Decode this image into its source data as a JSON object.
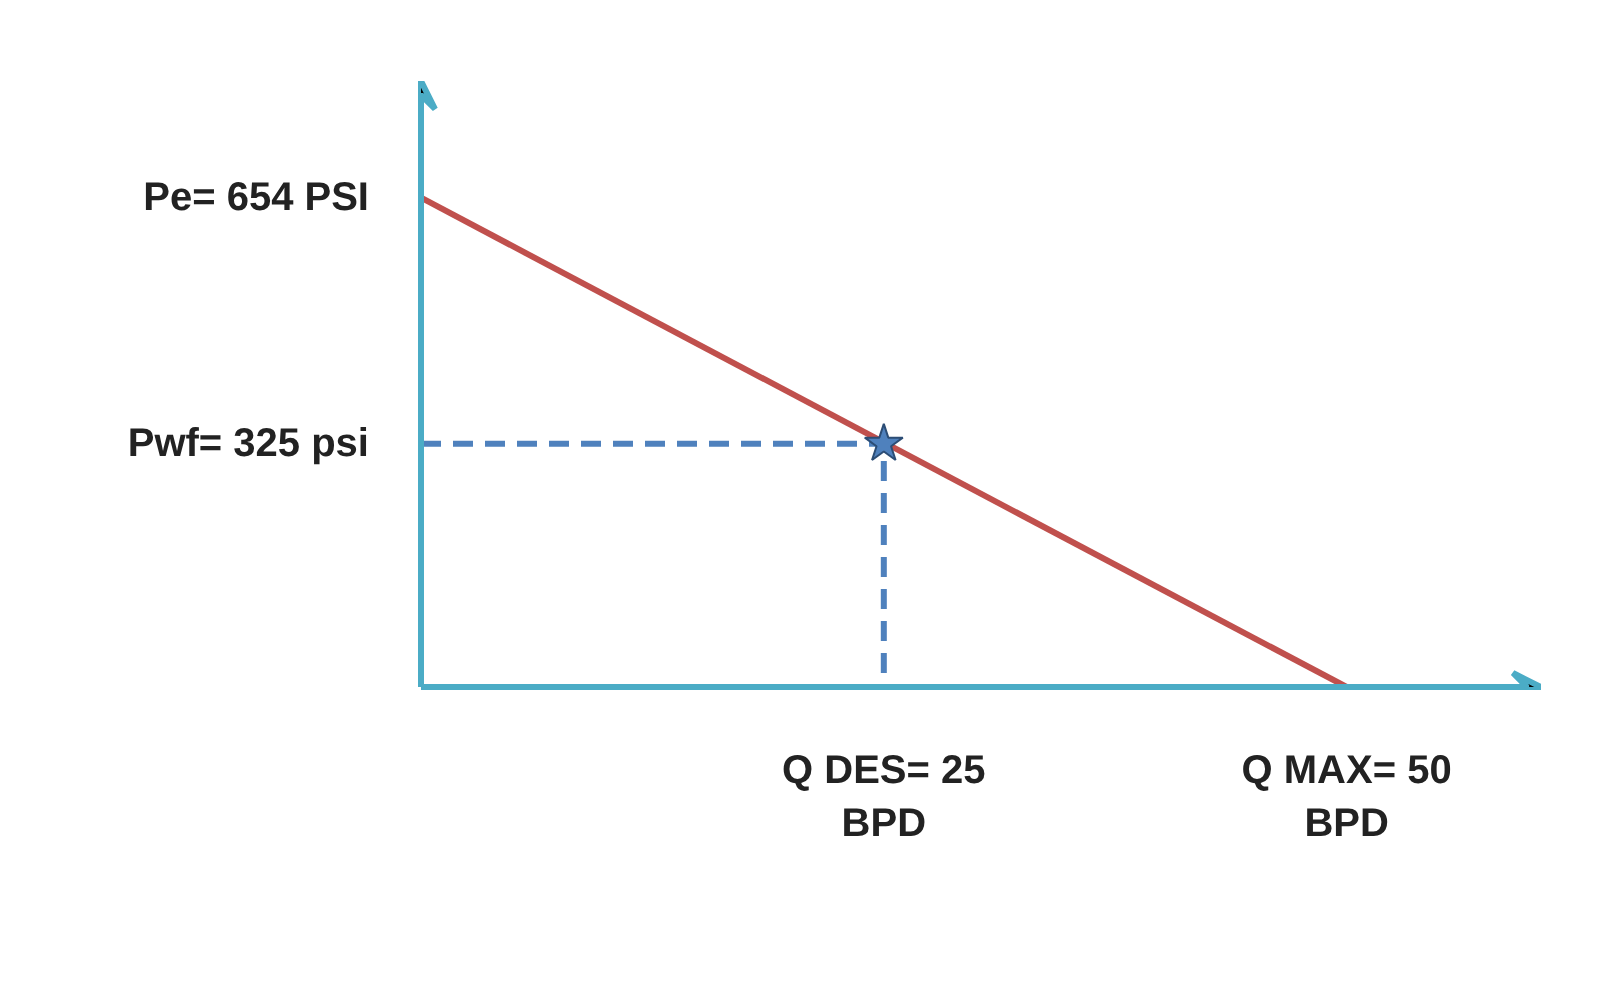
{
  "chart_data": {
    "type": "line",
    "xlim": [
      0,
      60.5
    ],
    "ylim": [
      0,
      810
    ],
    "xticks": [
      {
        "value": 25,
        "label": "Q DES= 25 BPD"
      },
      {
        "value": 50,
        "label": "Q MAX= 50 BPD"
      }
    ],
    "yticks": [
      {
        "value": 654,
        "label": "Pe= 654 PSI"
      },
      {
        "value": 325,
        "label": "Pwf= 325 psi"
      }
    ],
    "grid": false,
    "series": [
      {
        "color": "#c0504d",
        "x": [
          0,
          50
        ],
        "values": [
          654,
          0
        ],
        "line_style": "solid"
      },
      {
        "color": "#4f81bd",
        "x": [
          0,
          25,
          25
        ],
        "values": [
          325,
          325,
          0
        ],
        "line_style": "dashed"
      },
      {
        "type": "scatter",
        "color": "#4f81bd",
        "x": [
          25
        ],
        "values": [
          325
        ],
        "marker": "star"
      }
    ]
  }
}
